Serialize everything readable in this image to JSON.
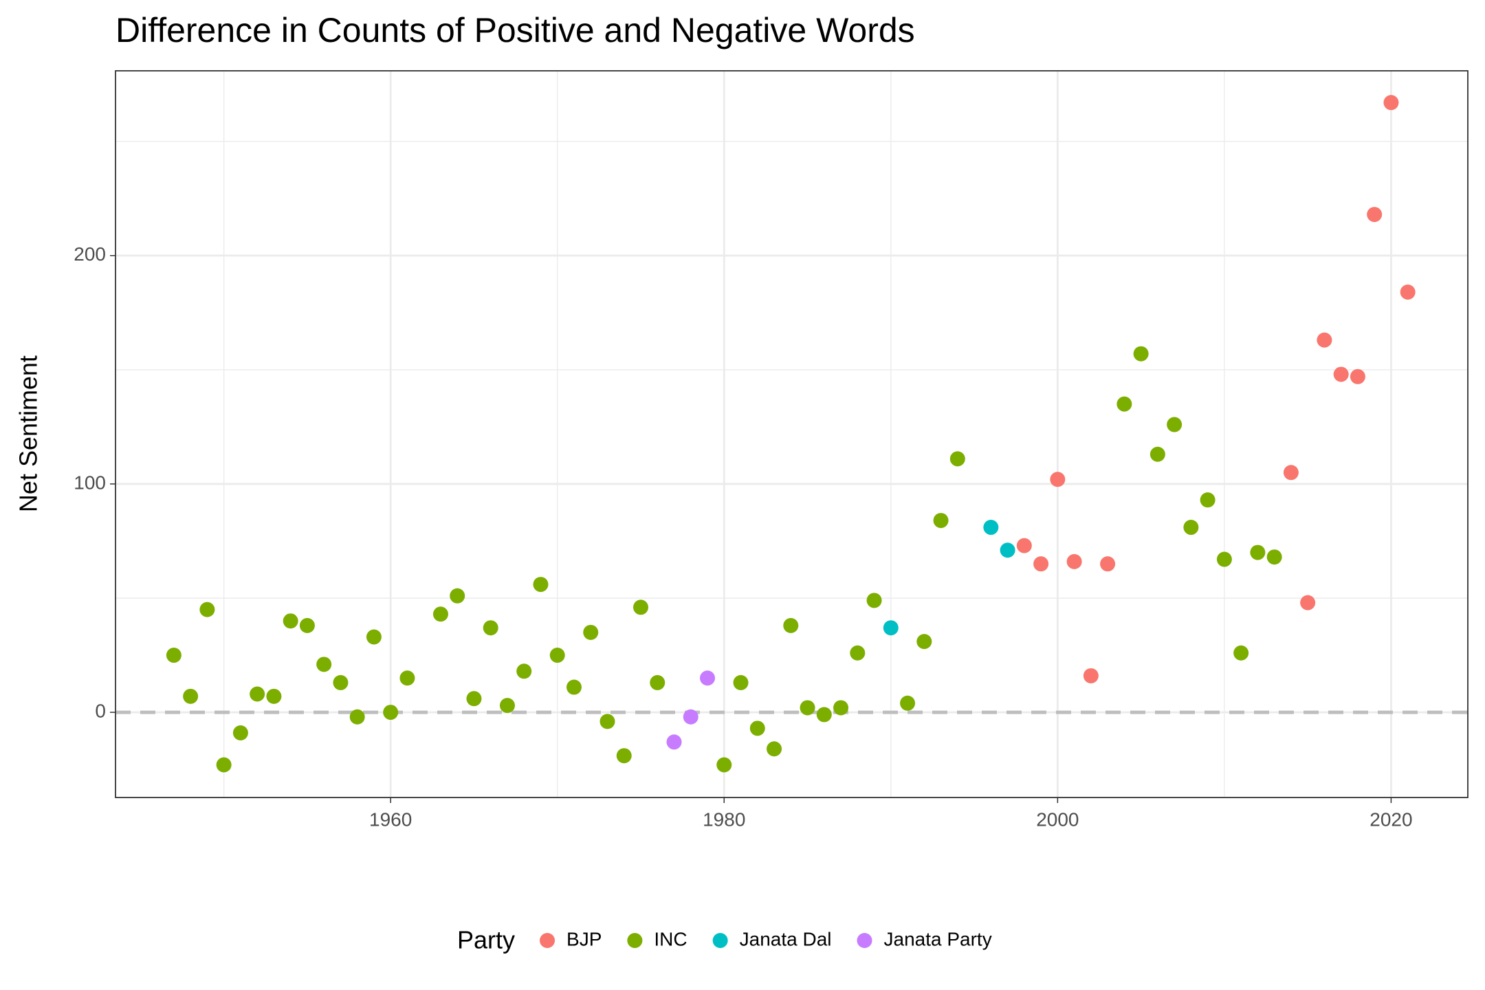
{
  "chart_data": {
    "type": "scatter",
    "title": "Difference in Counts of Positive and Negative Words",
    "y_label": "Net Sentiment",
    "legend_title": "Party",
    "legend_position": "bottom",
    "xlim": [
      1943.5,
      2024.6
    ],
    "xticks": [
      1960,
      1980,
      2000,
      2020
    ],
    "x_minor_grid": [
      1950,
      1970,
      1990,
      2010
    ],
    "ylim": [
      -37.3,
      280.9
    ],
    "yticks": [
      0,
      100,
      200
    ],
    "y_minor_grid": [
      50,
      150,
      250
    ],
    "grid": true,
    "hline": 0,
    "series": [
      {
        "name": "BJP",
        "color": "#f8766d",
        "x": [
          1998,
          1999,
          2000,
          2001,
          2002,
          2003,
          2014,
          2015,
          2016,
          2017,
          2018,
          2019,
          2020,
          2021
        ],
        "values": [
          73,
          65,
          102,
          66,
          16,
          65,
          105,
          48,
          163,
          148,
          147,
          218,
          267,
          184
        ]
      },
      {
        "name": "INC",
        "color": "#7cae00",
        "x": [
          1947,
          1948,
          1949,
          1950,
          1951,
          1952,
          1953,
          1954,
          1955,
          1956,
          1957,
          1958,
          1959,
          1960,
          1961,
          1963,
          1964,
          1965,
          1966,
          1967,
          1968,
          1969,
          1970,
          1971,
          1972,
          1973,
          1974,
          1975,
          1976,
          1980,
          1981,
          1982,
          1983,
          1984,
          1985,
          1986,
          1987,
          1988,
          1989,
          1991,
          1992,
          1993,
          1994,
          2004,
          2005,
          2006,
          2007,
          2008,
          2009,
          2010,
          2011,
          2012,
          2013
        ],
        "values": [
          25,
          7,
          45,
          -23,
          -9,
          8,
          7,
          40,
          38,
          21,
          13,
          -2,
          33,
          0,
          15,
          43,
          51,
          6,
          37,
          3,
          18,
          56,
          25,
          11,
          35,
          -4,
          -19,
          46,
          13,
          -23,
          13,
          -7,
          -16,
          38,
          2,
          -1,
          2,
          26,
          49,
          4,
          31,
          84,
          111,
          135,
          157,
          113,
          126,
          81,
          93,
          67,
          26,
          70,
          68
        ]
      },
      {
        "name": "Janata Dal",
        "color": "#00bfc4",
        "x": [
          1990,
          1996,
          1997
        ],
        "values": [
          37,
          81,
          71
        ]
      },
      {
        "name": "Janata Party",
        "color": "#c77cff",
        "x": [
          1977,
          1978,
          1979
        ],
        "values": [
          -13,
          -2,
          15
        ]
      }
    ]
  }
}
